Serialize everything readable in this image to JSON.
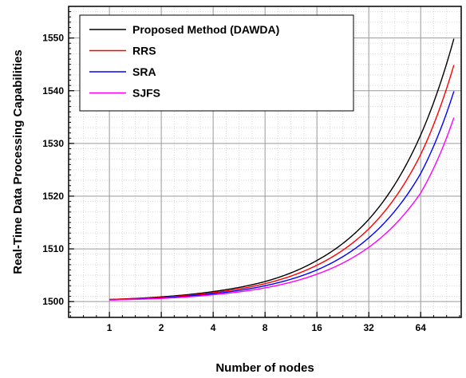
{
  "chart_data": {
    "type": "line",
    "xlabel": "Number of nodes",
    "ylabel": "Real-Time Data Processing Capabilities",
    "x_scale": "log2",
    "x_ticks": [
      1,
      2,
      4,
      8,
      16,
      32,
      64
    ],
    "x_tick_labels": [
      "1",
      "2",
      "4",
      "8",
      "16",
      "32",
      "64"
    ],
    "xlim": [
      0.58,
      110
    ],
    "y_ticks": [
      1500,
      1510,
      1520,
      1530,
      1540,
      1550
    ],
    "y_tick_labels": [
      "1500",
      "1510",
      "1520",
      "1530",
      "1540",
      "1550"
    ],
    "ylim": [
      1497,
      1556
    ],
    "grid": true,
    "legend_position": "top-left",
    "x": [
      1,
      2,
      4,
      8,
      16,
      32,
      64,
      100
    ],
    "series": [
      {
        "name": "Proposed Method (DAWDA)",
        "color": "#000000",
        "values": [
          1500.4,
          1500.9,
          1501.9,
          1503.8,
          1507.8,
          1515.6,
          1531.6,
          1550.0
        ]
      },
      {
        "name": "RRS",
        "color": "#ff0000",
        "values": [
          1500.4,
          1500.8,
          1501.7,
          1503.4,
          1506.9,
          1513.8,
          1527.9,
          1545.0
        ]
      },
      {
        "name": "SRA",
        "color": "#0000ff",
        "values": [
          1500.3,
          1500.7,
          1501.5,
          1503.0,
          1506.0,
          1512.1,
          1524.3,
          1540.0
        ]
      },
      {
        "name": "SJFS",
        "color": "#ff00ff",
        "values": [
          1500.3,
          1500.6,
          1501.3,
          1502.6,
          1505.2,
          1510.3,
          1520.6,
          1535.0
        ]
      }
    ]
  }
}
